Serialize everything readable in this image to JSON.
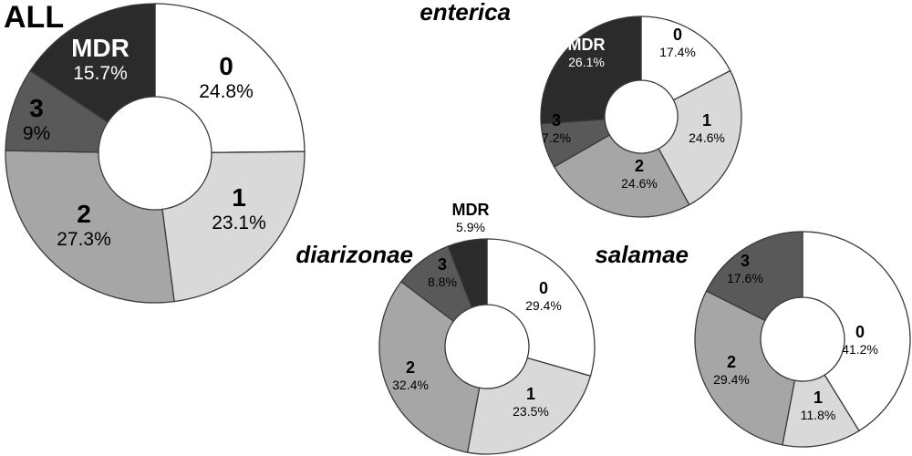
{
  "chart_data": [
    {
      "type": "pie",
      "title": "ALL",
      "categories": [
        "0",
        "1",
        "2",
        "3",
        "MDR"
      ],
      "values": [
        24.8,
        23.1,
        27.3,
        9.0,
        15.7
      ],
      "labels": [
        "24.8%",
        "23.1%",
        "27.3%",
        "9%",
        "15.7%"
      ],
      "colors": [
        "#ffffff",
        "#d9d9d9",
        "#a6a6a6",
        "#595959",
        "#2b2b2b"
      ]
    },
    {
      "type": "pie",
      "title": "enterica",
      "categories": [
        "0",
        "1",
        "2",
        "3",
        "MDR"
      ],
      "values": [
        17.4,
        24.6,
        24.6,
        7.2,
        26.1
      ],
      "labels": [
        "17.4%",
        "24.6%",
        "24.6%",
        "7.2%",
        "26.1%"
      ],
      "colors": [
        "#ffffff",
        "#d9d9d9",
        "#a6a6a6",
        "#595959",
        "#2b2b2b"
      ]
    },
    {
      "type": "pie",
      "title": "diarizonae",
      "categories": [
        "0",
        "1",
        "2",
        "3",
        "MDR"
      ],
      "values": [
        29.4,
        23.5,
        32.4,
        8.8,
        5.9
      ],
      "labels": [
        "29.4%",
        "23.5%",
        "32.4%",
        "8.8%",
        "5.9%"
      ],
      "colors": [
        "#ffffff",
        "#d9d9d9",
        "#a6a6a6",
        "#595959",
        "#2b2b2b"
      ]
    },
    {
      "type": "pie",
      "title": "salamae",
      "categories": [
        "0",
        "1",
        "2",
        "3"
      ],
      "values": [
        41.2,
        11.8,
        29.4,
        17.6
      ],
      "labels": [
        "41.2%",
        "11.8%",
        "29.4%",
        "17.6%"
      ],
      "colors": [
        "#ffffff",
        "#d9d9d9",
        "#a6a6a6",
        "#595959"
      ]
    }
  ]
}
